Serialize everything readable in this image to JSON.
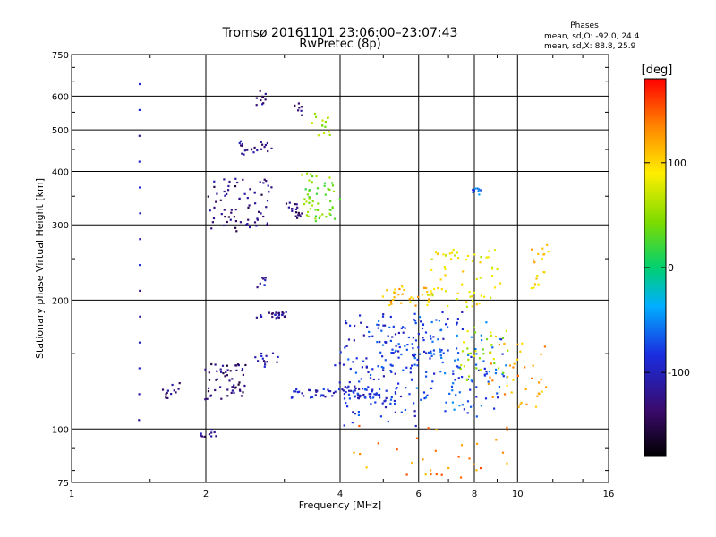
{
  "title": "Tromsø 20161101 23:06:00–23:07:43",
  "subtitle": "RwPretec (8p)",
  "stats": {
    "heading": "Phases",
    "line1": "mean, sd,O: -92.0, 24.4",
    "line2": "mean, sd,X:  88.8, 25.9"
  },
  "colorbar": {
    "label": "[deg]",
    "ticks": [
      {
        "value": 100,
        "label": "100"
      },
      {
        "value": 0,
        "label": "0"
      },
      {
        "value": -100,
        "label": "-100"
      }
    ],
    "range": [
      -180,
      180
    ]
  },
  "chart_data": {
    "type": "scatter",
    "title": "Tromsø 20161101 23:06:00–23:07:43",
    "subtitle": "RwPretec (8p)",
    "xlabel": "Frequency [MHz]",
    "ylabel": "Stationary phase Virtual Height [km]",
    "xscale": "log",
    "yscale": "log",
    "xlim": [
      1,
      16
    ],
    "ylim": [
      75,
      750
    ],
    "x_ticks": [
      {
        "value": 1,
        "label": "1"
      },
      {
        "value": 2,
        "label": "2"
      },
      {
        "value": 4,
        "label": "4"
      },
      {
        "value": 6,
        "label": "6"
      },
      {
        "value": 8,
        "label": "8"
      },
      {
        "value": 10,
        "label": "10"
      },
      {
        "value": 16,
        "label": "16"
      }
    ],
    "y_ticks": [
      {
        "value": 75,
        "label": "75"
      },
      {
        "value": 100,
        "label": "100"
      },
      {
        "value": 200,
        "label": "200"
      },
      {
        "value": 300,
        "label": "300"
      },
      {
        "value": 400,
        "label": "400"
      },
      {
        "value": 500,
        "label": "500"
      },
      {
        "value": 600,
        "label": "600"
      },
      {
        "value": 750,
        "label": "750"
      }
    ],
    "grid": true,
    "colormap": "rainbow (phase, degrees)",
    "clusters": [
      {
        "x": [
          1.42,
          1.42
        ],
        "y": [
          105,
          640
        ],
        "phase": -110,
        "n": 14,
        "spread": [
          0.003,
          0.0
        ]
      },
      {
        "x": [
          1.6,
          1.75
        ],
        "y": [
          118,
          128
        ],
        "phase": -130,
        "n": 12,
        "spread": [
          0.01,
          0.015
        ]
      },
      {
        "x": [
          2.0,
          2.45
        ],
        "y": [
          118,
          142
        ],
        "phase": -135,
        "n": 55,
        "spread": [
          0.012,
          0.02
        ]
      },
      {
        "x": [
          1.95,
          2.12
        ],
        "y": [
          96,
          100
        ],
        "phase": -120,
        "n": 10,
        "spread": [
          0.005,
          0.006
        ]
      },
      {
        "x": [
          2.05,
          2.85
        ],
        "y": [
          290,
          380
        ],
        "phase": -130,
        "n": 70,
        "spread": [
          0.02,
          0.04
        ]
      },
      {
        "x": [
          2.4,
          2.8
        ],
        "y": [
          440,
          470
        ],
        "phase": -120,
        "n": 22,
        "spread": [
          0.01,
          0.012
        ]
      },
      {
        "x": [
          2.6,
          2.72
        ],
        "y": [
          570,
          620
        ],
        "phase": -125,
        "n": 10,
        "spread": [
          0.01,
          0.015
        ]
      },
      {
        "x": [
          2.6,
          3.05
        ],
        "y": [
          182,
          188
        ],
        "phase": -115,
        "n": 24,
        "spread": [
          0.006,
          0.005
        ]
      },
      {
        "x": [
          2.6,
          2.75
        ],
        "y": [
          215,
          228
        ],
        "phase": -110,
        "n": 8,
        "spread": [
          0.006,
          0.01
        ]
      },
      {
        "x": [
          2.55,
          2.9
        ],
        "y": [
          140,
          150
        ],
        "phase": -110,
        "n": 14,
        "spread": [
          0.008,
          0.012
        ]
      },
      {
        "x": [
          3.05,
          3.3
        ],
        "y": [
          310,
          340
        ],
        "phase": -135,
        "n": 18,
        "spread": [
          0.01,
          0.02
        ]
      },
      {
        "x": [
          3.15,
          3.3
        ],
        "y": [
          545,
          575
        ],
        "phase": -120,
        "n": 8,
        "spread": [
          0.006,
          0.01
        ]
      },
      {
        "x": [
          3.3,
          3.95
        ],
        "y": [
          310,
          385
        ],
        "phase": 40,
        "n": 55,
        "spread": [
          0.02,
          0.035
        ]
      },
      {
        "x": [
          3.45,
          3.8
        ],
        "y": [
          480,
          540
        ],
        "phase": 55,
        "n": 14,
        "spread": [
          0.01,
          0.02
        ]
      },
      {
        "x": [
          3.1,
          4.9
        ],
        "y": [
          118,
          124
        ],
        "phase": -95,
        "n": 70,
        "spread": [
          0.008,
          0.008
        ]
      },
      {
        "x": [
          4.0,
          6.0
        ],
        "y": [
          104,
          180
        ],
        "phase": -85,
        "n": 130,
        "spread": [
          0.03,
          0.05
        ]
      },
      {
        "x": [
          4.8,
          7.5
        ],
        "y": [
          135,
          185
        ],
        "phase": -80,
        "n": 80,
        "spread": [
          0.03,
          0.04
        ]
      },
      {
        "x": [
          5.0,
          6.6
        ],
        "y": [
          195,
          215
        ],
        "phase": 110,
        "n": 35,
        "spread": [
          0.015,
          0.012
        ]
      },
      {
        "x": [
          6.4,
          9.0
        ],
        "y": [
          195,
          260
        ],
        "phase": 85,
        "n": 60,
        "spread": [
          0.025,
          0.04
        ]
      },
      {
        "x": [
          6.0,
          9.5
        ],
        "y": [
          110,
          175
        ],
        "phase": -70,
        "n": 90,
        "spread": [
          0.03,
          0.05
        ]
      },
      {
        "x": [
          7.5,
          9.5
        ],
        "y": [
          130,
          175
        ],
        "phase": 60,
        "n": 35,
        "spread": [
          0.02,
          0.03
        ]
      },
      {
        "x": [
          7.9,
          8.3
        ],
        "y": [
          345,
          365
        ],
        "phase": -60,
        "n": 10,
        "spread": [
          0.006,
          0.008
        ]
      },
      {
        "x": [
          8.5,
          11.5
        ],
        "y": [
          110,
          160
        ],
        "phase": 120,
        "n": 40,
        "spread": [
          0.025,
          0.04
        ]
      },
      {
        "x": [
          10.5,
          11.8
        ],
        "y": [
          210,
          270
        ],
        "phase": 100,
        "n": 18,
        "spread": [
          0.015,
          0.03
        ]
      },
      {
        "x": [
          4.2,
          9.5
        ],
        "y": [
          78,
          102
        ],
        "phase": 130,
        "n": 32,
        "spread": [
          0.04,
          0.02
        ]
      }
    ]
  }
}
